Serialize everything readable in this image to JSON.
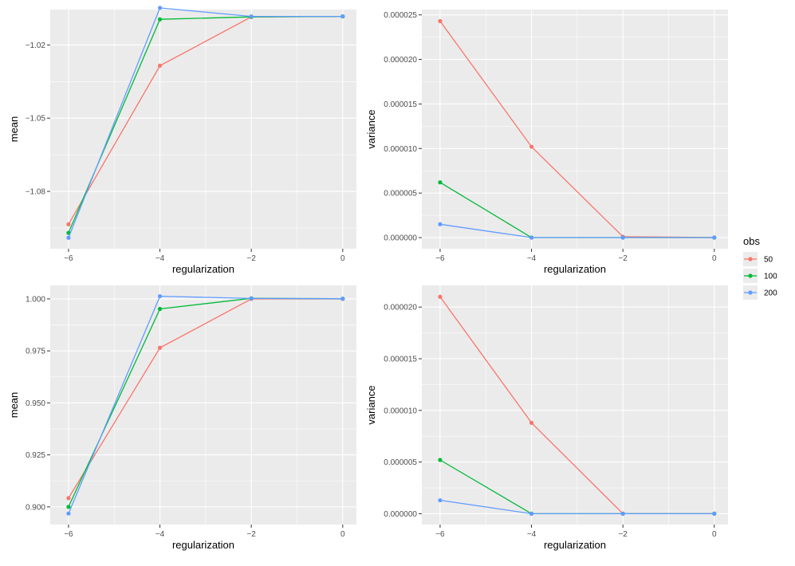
{
  "legend": {
    "title": "obs",
    "entries": [
      {
        "label": "50",
        "color": "#F8766D"
      },
      {
        "label": "100",
        "color": "#00BA38"
      },
      {
        "label": "200",
        "color": "#619CFF"
      }
    ]
  },
  "chart_data": [
    {
      "type": "line",
      "panel": "top-left",
      "xlabel": "regularization",
      "ylabel": "mean",
      "x": [
        -6,
        -4,
        -2,
        0
      ],
      "xlim": [
        -6.4,
        0.3
      ],
      "ylim": [
        -1.1035,
        -1.0055
      ],
      "x_ticks": [
        -6,
        -4,
        -2,
        0
      ],
      "x_tick_labels": [
        "−6",
        "−4",
        "−2",
        "0"
      ],
      "y_ticks": [
        -1.08,
        -1.05,
        -1.02
      ],
      "y_tick_labels": [
        "−1.08",
        "−1.05",
        "−1.02"
      ],
      "series": [
        {
          "name": "50",
          "values": [
            -1.0935,
            -1.0285,
            -1.0085,
            -1.0083
          ]
        },
        {
          "name": "100",
          "values": [
            -1.097,
            -1.0095,
            -1.0085,
            -1.0083
          ]
        },
        {
          "name": "200",
          "values": [
            -1.099,
            -1.0048,
            -1.0083,
            -1.0083
          ]
        }
      ]
    },
    {
      "type": "line",
      "panel": "top-right",
      "xlabel": "regularization",
      "ylabel": "variance",
      "x": [
        -6,
        -4,
        -2,
        0
      ],
      "xlim": [
        -6.4,
        0.3
      ],
      "ylim": [
        -1.25e-06,
        2.56e-05
      ],
      "x_ticks": [
        -6,
        -4,
        -2,
        0
      ],
      "x_tick_labels": [
        "−6",
        "−4",
        "−2",
        "0"
      ],
      "y_ticks": [
        0,
        5e-06,
        1e-05,
        1.5e-05,
        2e-05,
        2.5e-05
      ],
      "y_tick_labels": [
        "0.000000",
        "0.000005",
        "0.000010",
        "0.000015",
        "0.000020",
        "0.000025"
      ],
      "series": [
        {
          "name": "50",
          "values": [
            2.43e-05,
            1.02e-05,
            1e-07,
            0.0
          ]
        },
        {
          "name": "100",
          "values": [
            6.2e-06,
            0.0,
            0.0,
            0.0
          ]
        },
        {
          "name": "200",
          "values": [
            1.5e-06,
            0.0,
            0.0,
            0.0
          ]
        }
      ]
    },
    {
      "type": "line",
      "panel": "bottom-left",
      "xlabel": "regularization",
      "ylabel": "mean",
      "x": [
        -6,
        -4,
        -2,
        0
      ],
      "xlim": [
        -6.4,
        0.3
      ],
      "ylim": [
        0.8915,
        1.0065
      ],
      "x_ticks": [
        -6,
        -4,
        -2,
        0
      ],
      "x_tick_labels": [
        "−6",
        "−4",
        "−2",
        "0"
      ],
      "y_ticks": [
        0.9,
        0.925,
        0.95,
        0.975,
        1.0
      ],
      "y_tick_labels": [
        "0.900",
        "0.925",
        "0.950",
        "0.975",
        "1.000"
      ],
      "series": [
        {
          "name": "50",
          "values": [
            0.9042,
            0.9765,
            1.0,
            1.0
          ]
        },
        {
          "name": "100",
          "values": [
            0.9,
            0.9952,
            1.0003,
            1.0001
          ]
        },
        {
          "name": "200",
          "values": [
            0.8968,
            1.0013,
            1.0002,
            1.0001
          ]
        }
      ]
    },
    {
      "type": "line",
      "panel": "bottom-right",
      "xlabel": "regularization",
      "ylabel": "variance",
      "x": [
        -6,
        -4,
        -2,
        0
      ],
      "xlim": [
        -6.4,
        0.3
      ],
      "ylim": [
        -1.05e-06,
        2.21e-05
      ],
      "x_ticks": [
        -6,
        -4,
        -2,
        0
      ],
      "x_tick_labels": [
        "−6",
        "−4",
        "−2",
        "0"
      ],
      "y_ticks": [
        0,
        5e-06,
        1e-05,
        1.5e-05,
        2e-05
      ],
      "y_tick_labels": [
        "0.000000",
        "0.000005",
        "0.000010",
        "0.000015",
        "0.000020"
      ],
      "series": [
        {
          "name": "50",
          "values": [
            2.1e-05,
            8.8e-06,
            0.0,
            0.0
          ]
        },
        {
          "name": "100",
          "values": [
            5.2e-06,
            0.0,
            0.0,
            0.0
          ]
        },
        {
          "name": "200",
          "values": [
            1.3e-06,
            0.0,
            0.0,
            0.0
          ]
        }
      ]
    }
  ]
}
